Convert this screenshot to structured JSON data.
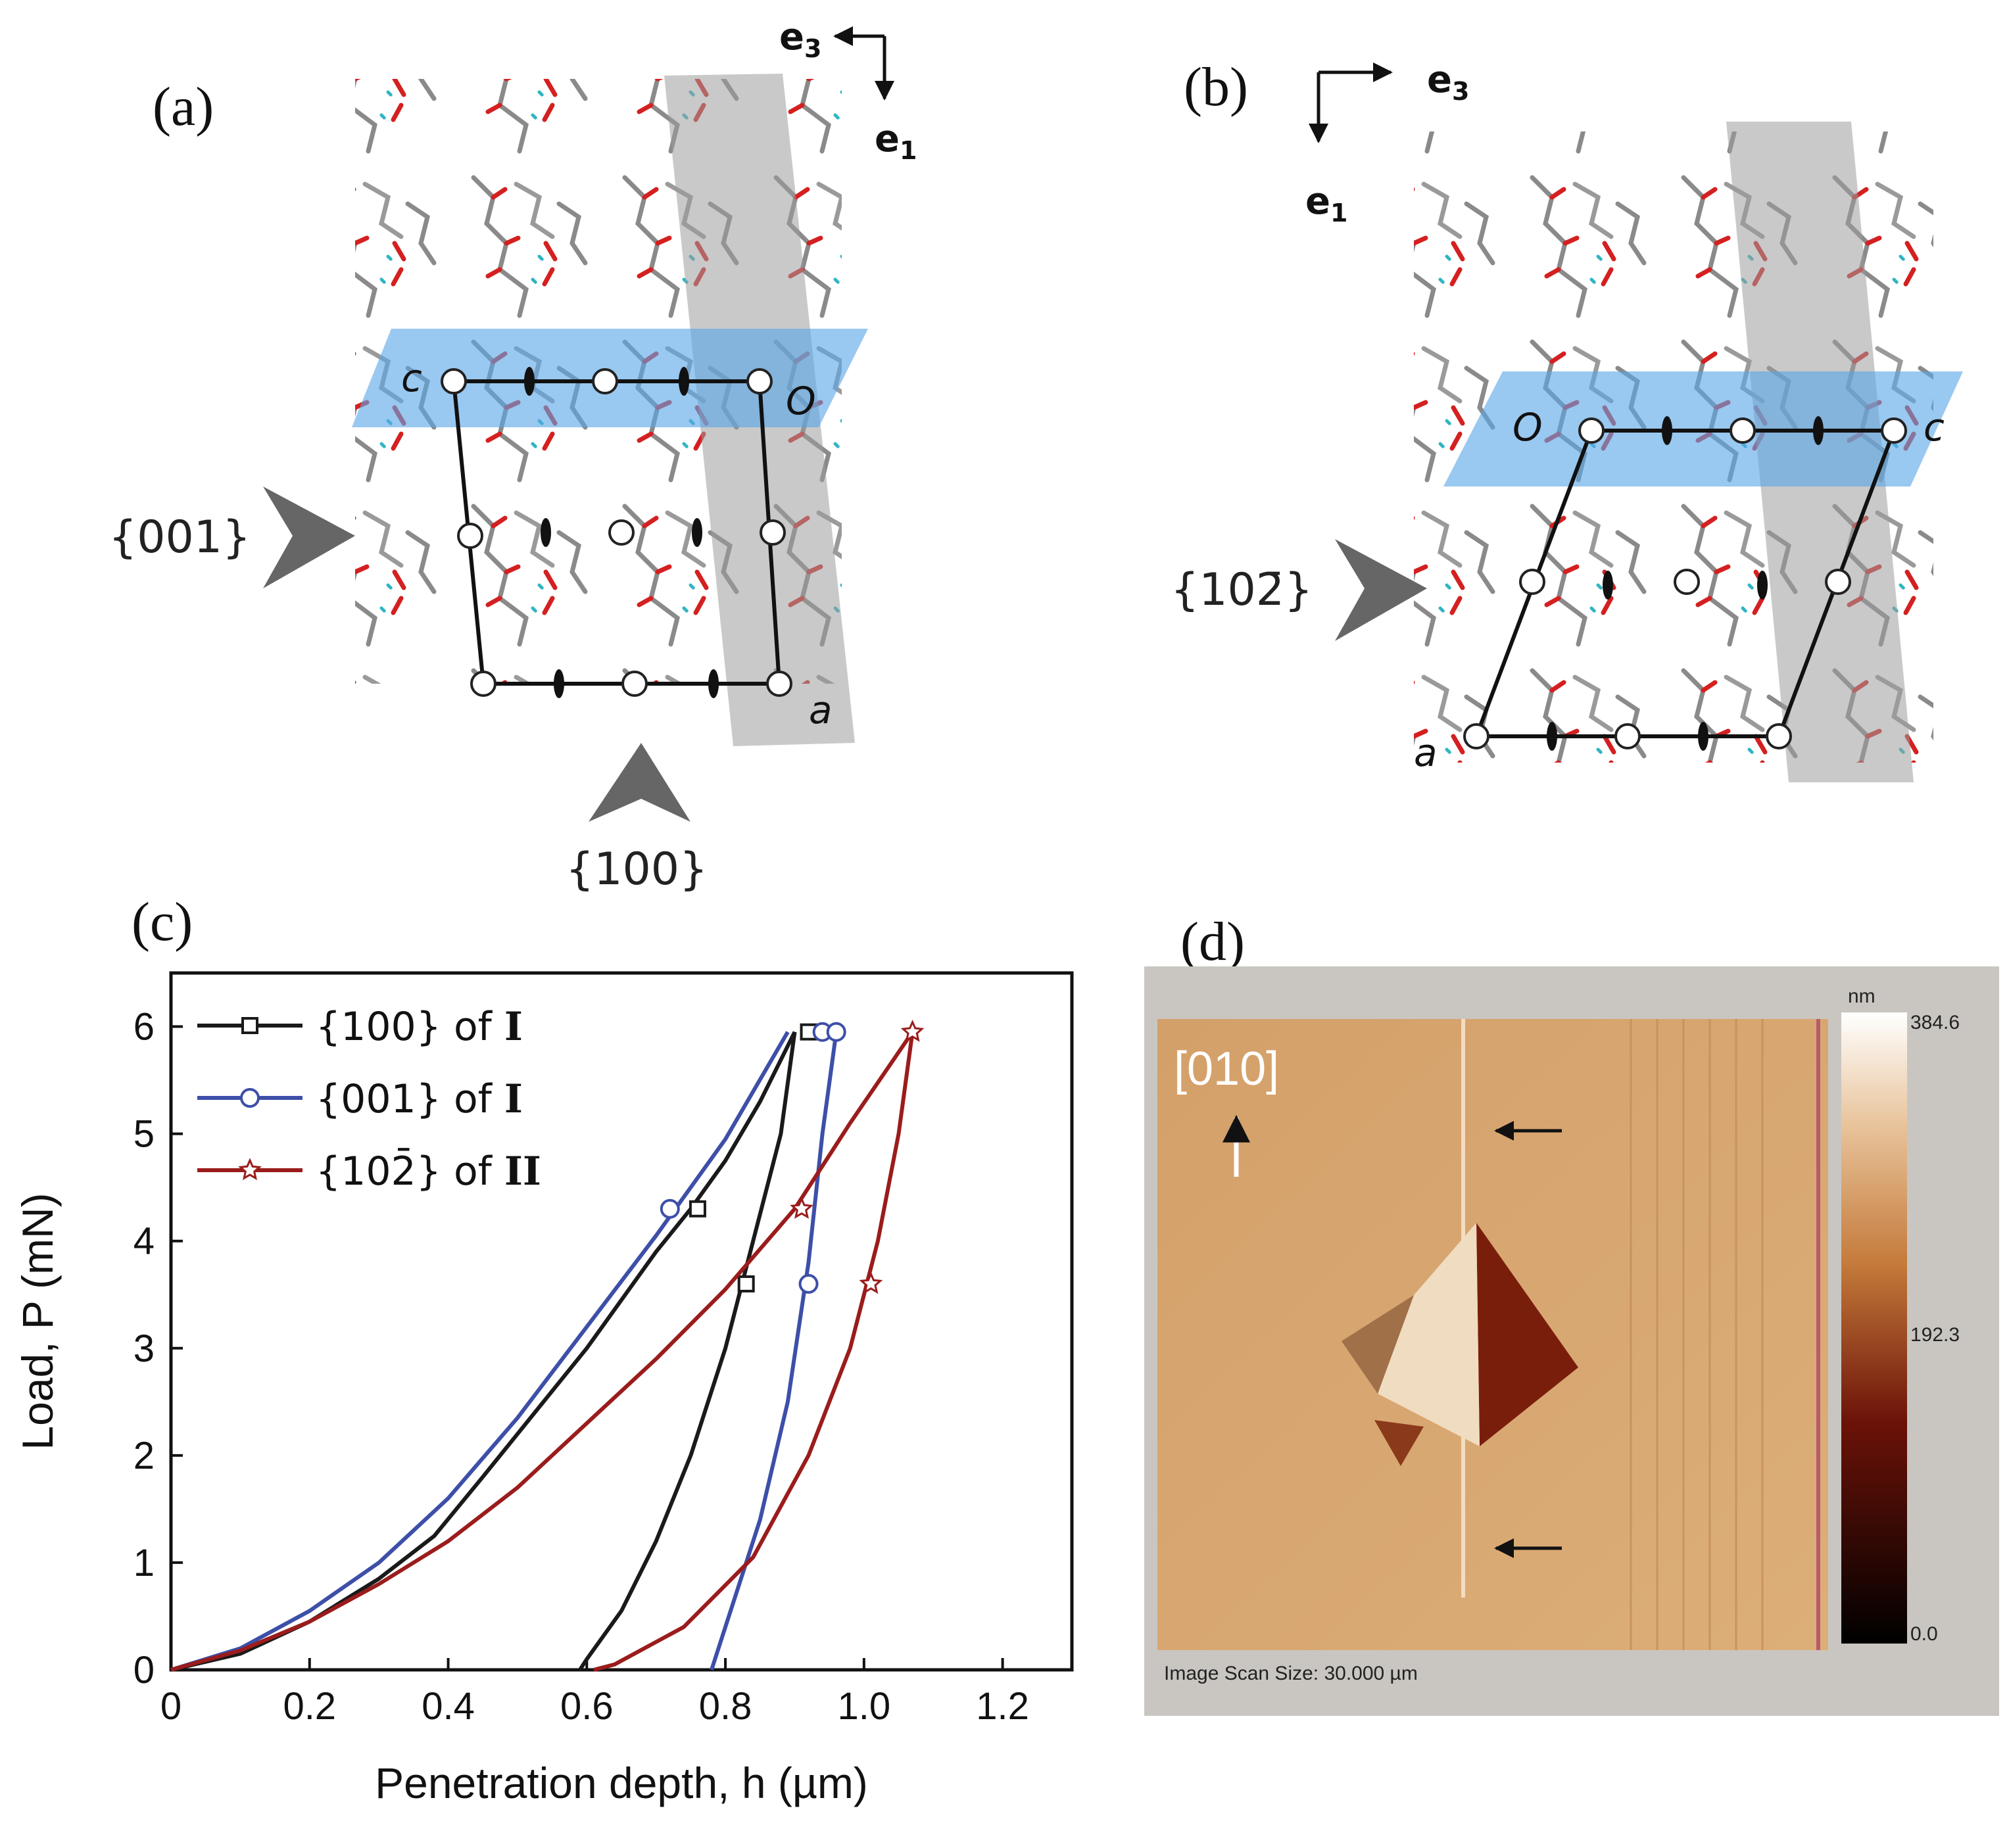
{
  "panels": {
    "a": {
      "label": "(a)",
      "axes": {
        "e3": "e",
        "e3_sub": "3",
        "e1": "e",
        "e1_sub": "1"
      },
      "cell_labels": {
        "c": "c",
        "O": "O",
        "a": "a"
      },
      "arrows": {
        "left": "{001}",
        "bottom": "{100}"
      }
    },
    "b": {
      "label": "(b)",
      "axes": {
        "e3": "e",
        "e3_sub": "3",
        "e1": "e",
        "e1_sub": "1"
      },
      "cell_labels": {
        "O": "O",
        "c": "c",
        "a": "a"
      },
      "arrows": {
        "left": "{102̄}"
      }
    },
    "c": {
      "label": "(c)"
    },
    "d": {
      "label": "(d)",
      "direction": "[010]",
      "colorbar": {
        "unit": "nm",
        "max": "384.6",
        "mid": "192.3",
        "min": "0.0"
      },
      "scan_size": "Image Scan Size:  30.000 µm",
      "colors": {
        "frame": "#c9c6c1",
        "surface": "#d9a468",
        "indent_dark": "#7a1e0c"
      }
    }
  },
  "chart_data": {
    "type": "line",
    "xlabel": "Penetration depth, h (µm)",
    "ylabel": "Load, P (mN)",
    "xlim": [
      0,
      1.3
    ],
    "ylim": [
      0,
      6.5
    ],
    "xticks": [
      "0",
      "0.2",
      "0.4",
      "0.6",
      "0.8",
      "1.0",
      "1.2"
    ],
    "xtick_values": [
      0,
      0.2,
      0.4,
      0.6,
      0.8,
      1.0,
      1.2
    ],
    "yticks": [
      "0",
      "1",
      "2",
      "3",
      "4",
      "5",
      "6"
    ],
    "ytick_values": [
      0,
      1,
      2,
      3,
      4,
      5,
      6
    ],
    "legend_position": "top-left",
    "series": [
      {
        "name": "{100} of I",
        "legend_text": "{100} of ",
        "legend_bold": "I",
        "color": "#1a1a1a",
        "marker": "square",
        "loading": [
          [
            0,
            0
          ],
          [
            0.1,
            0.15
          ],
          [
            0.2,
            0.45
          ],
          [
            0.3,
            0.85
          ],
          [
            0.38,
            1.25
          ],
          [
            0.45,
            1.8
          ],
          [
            0.5,
            2.2
          ],
          [
            0.55,
            2.6
          ],
          [
            0.6,
            3.0
          ],
          [
            0.65,
            3.45
          ],
          [
            0.7,
            3.9
          ],
          [
            0.75,
            4.3
          ],
          [
            0.8,
            4.75
          ],
          [
            0.85,
            5.3
          ],
          [
            0.9,
            5.95
          ]
        ],
        "unloading": [
          [
            0.9,
            5.95
          ],
          [
            0.88,
            5.0
          ],
          [
            0.84,
            4.0
          ],
          [
            0.8,
            3.0
          ],
          [
            0.75,
            2.0
          ],
          [
            0.7,
            1.2
          ],
          [
            0.65,
            0.55
          ],
          [
            0.6,
            0.1
          ],
          [
            0.59,
            0
          ]
        ],
        "markers": [
          [
            0.76,
            4.3
          ],
          [
            0.83,
            3.6
          ],
          [
            0.92,
            5.95
          ]
        ]
      },
      {
        "name": "{001} of I",
        "legend_text": "{001} of ",
        "legend_bold": "I",
        "color": "#3d4fa8",
        "marker": "circle",
        "loading": [
          [
            0,
            0
          ],
          [
            0.1,
            0.2
          ],
          [
            0.2,
            0.55
          ],
          [
            0.3,
            1.0
          ],
          [
            0.4,
            1.6
          ],
          [
            0.5,
            2.35
          ],
          [
            0.6,
            3.2
          ],
          [
            0.7,
            4.05
          ],
          [
            0.8,
            4.95
          ],
          [
            0.89,
            5.95
          ]
        ],
        "unloading": [
          [
            0.96,
            5.95
          ],
          [
            0.94,
            5.0
          ],
          [
            0.92,
            3.8
          ],
          [
            0.89,
            2.5
          ],
          [
            0.85,
            1.4
          ],
          [
            0.81,
            0.6
          ],
          [
            0.78,
            0
          ]
        ],
        "markers": [
          [
            0.72,
            4.3
          ],
          [
            0.92,
            3.6
          ],
          [
            0.94,
            5.95
          ],
          [
            0.96,
            5.95
          ]
        ]
      },
      {
        "name": "{102̄} of II",
        "legend_text": "{102̄} of ",
        "legend_bold": "II",
        "color": "#9b1c1c",
        "marker": "star",
        "loading": [
          [
            0,
            0
          ],
          [
            0.1,
            0.18
          ],
          [
            0.2,
            0.45
          ],
          [
            0.3,
            0.8
          ],
          [
            0.4,
            1.2
          ],
          [
            0.5,
            1.7
          ],
          [
            0.6,
            2.3
          ],
          [
            0.7,
            2.9
          ],
          [
            0.8,
            3.55
          ],
          [
            0.9,
            4.3
          ],
          [
            0.98,
            5.1
          ],
          [
            1.07,
            5.95
          ]
        ],
        "unloading": [
          [
            1.07,
            5.95
          ],
          [
            1.05,
            5.0
          ],
          [
            1.02,
            4.0
          ],
          [
            0.98,
            3.0
          ],
          [
            0.92,
            2.0
          ],
          [
            0.84,
            1.05
          ],
          [
            0.74,
            0.4
          ],
          [
            0.64,
            0.05
          ],
          [
            0.61,
            0
          ]
        ],
        "markers": [
          [
            0.91,
            4.3
          ],
          [
            1.01,
            3.6
          ],
          [
            1.07,
            5.95
          ]
        ]
      }
    ]
  }
}
